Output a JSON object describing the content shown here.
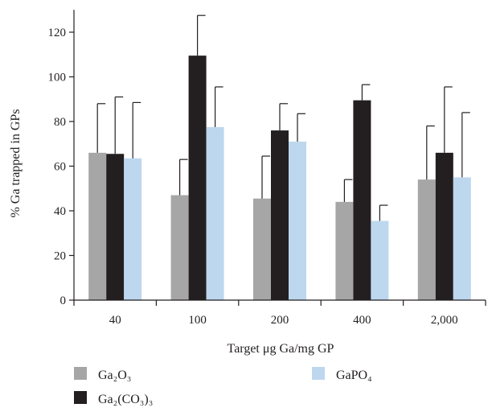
{
  "chart_data": {
    "type": "bar",
    "ylabel": "% Ga trapped in GPs",
    "xlabel": "Target μg Ga/mg GP",
    "categories": [
      "40",
      "100",
      "200",
      "400",
      "2,000"
    ],
    "ylim": [
      0,
      130
    ],
    "yticks": [
      0,
      20,
      40,
      60,
      80,
      100,
      120
    ],
    "grid": false,
    "legend_position": "bottom",
    "series": [
      {
        "name": "Ga₂O₃",
        "color": "#a6a6a6",
        "values": [
          66,
          47,
          45.5,
          44,
          54
        ],
        "errors": [
          22,
          16,
          19,
          10,
          24
        ]
      },
      {
        "name": "Ga₂(CO₃)₃",
        "color": "#231f20",
        "values": [
          65.5,
          109.5,
          76,
          89.5,
          66
        ],
        "errors": [
          25.5,
          18,
          12,
          7,
          29.5
        ]
      },
      {
        "name": "GaPO₄",
        "color": "#bdd7ee",
        "values": [
          63.5,
          77.5,
          71,
          35.5,
          55
        ],
        "errors": [
          25,
          18,
          12.5,
          7,
          29
        ]
      }
    ]
  }
}
